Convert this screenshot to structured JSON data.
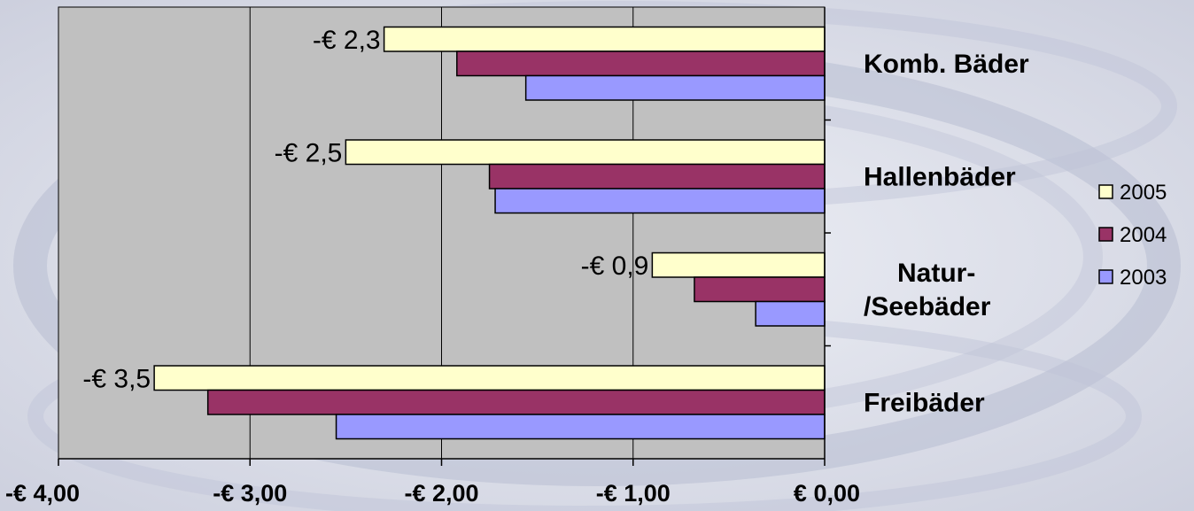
{
  "chart_data": {
    "type": "bar",
    "orientation": "horizontal",
    "categories": [
      "Komb. Bäder",
      "Hallenbäder",
      "Natur-/Seebäder",
      "Freibäder"
    ],
    "series": [
      {
        "name": "2005",
        "color": "#ffffcc",
        "values": [
          -2.3,
          -2.5,
          -0.9,
          -3.5
        ]
      },
      {
        "name": "2004",
        "color": "#993366",
        "values": [
          -1.92,
          -1.75,
          -0.68,
          -3.22
        ]
      },
      {
        "name": "2003",
        "color": "#9999ff",
        "values": [
          -1.56,
          -1.72,
          -0.36,
          -2.55
        ]
      }
    ],
    "data_labels": [
      "-€ 2,3",
      "-€ 2,5",
      "-€ 0,9",
      "-€ 3,5"
    ],
    "category_label_lines": [
      [
        "Komb. Bäder"
      ],
      [
        "Hallenbäder"
      ],
      [
        "Natur-",
        "/Seebäder"
      ],
      [
        "Freibäder"
      ]
    ],
    "xlim": [
      -4,
      0
    ],
    "x_ticks": [
      -4,
      -3,
      -2,
      -1,
      0
    ],
    "x_tick_labels": [
      "-€ 4,00",
      "-€ 3,00",
      "-€ 2,00",
      "-€ 1,00",
      "€ 0,00"
    ],
    "plot_background": "#c0c0c0",
    "grid": "vertical",
    "legend_position": "right",
    "legend_order": [
      "2005",
      "2004",
      "2003"
    ]
  }
}
